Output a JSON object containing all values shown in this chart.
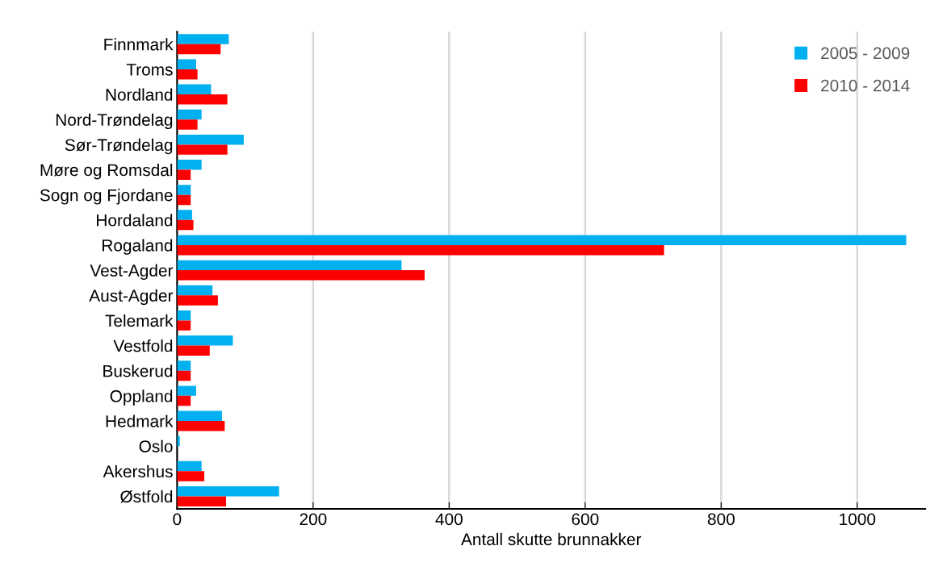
{
  "chart_data": {
    "type": "bar",
    "orientation": "horizontal",
    "xlabel": "Antall skutte brunnakker",
    "categories": [
      "Finnmark",
      "Troms",
      "Nordland",
      "Nord-Trøndelag",
      "Sør-Trøndelag",
      "Møre og Romsdal",
      "Sogn og Fjordane",
      "Hordaland",
      "Rogaland",
      "Vest-Agder",
      "Aust-Agder",
      "Telemark",
      "Vestfold",
      "Buskerud",
      "Oppland",
      "Hedmark",
      "Oslo",
      "Akershus",
      "Østfold"
    ],
    "series": [
      {
        "name": "2005 - 2009",
        "color": "#00b0f0",
        "values": [
          76,
          28,
          50,
          36,
          98,
          36,
          20,
          22,
          1072,
          330,
          52,
          20,
          82,
          20,
          28,
          66,
          4,
          36,
          150
        ]
      },
      {
        "name": "2010 - 2014",
        "color": "#ff0000",
        "values": [
          64,
          30,
          74,
          30,
          74,
          20,
          20,
          24,
          716,
          364,
          60,
          20,
          48,
          20,
          20,
          70,
          0,
          40,
          72
        ]
      }
    ],
    "xlim": [
      0,
      1100
    ],
    "xticks": [
      0,
      200,
      400,
      600,
      800,
      1000
    ],
    "grid": "x",
    "legend": "top right"
  }
}
